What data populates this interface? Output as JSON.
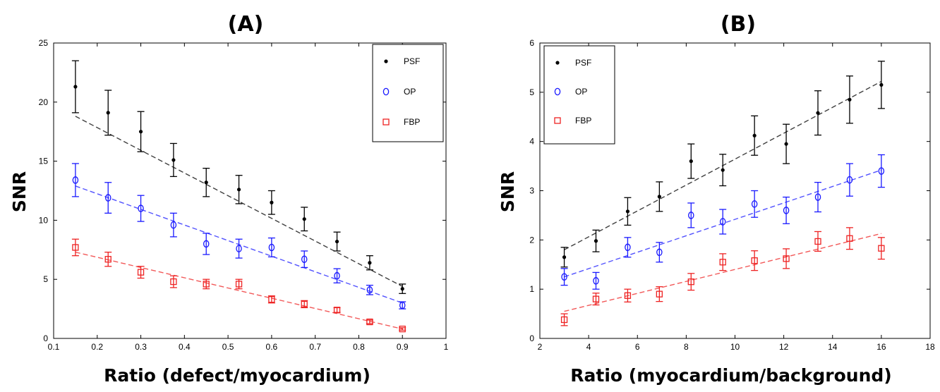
{
  "chart_data": [
    {
      "type": "scatter",
      "title": "(A)",
      "xlabel": "Ratio (defect/myocardium)",
      "ylabel": "SNR",
      "xlim": [
        0.1,
        1
      ],
      "ylim": [
        0,
        25
      ],
      "xticks": [
        "0.1",
        "0.2",
        "0.3",
        "0.4",
        "0.5",
        "0.6",
        "0.7",
        "0.8",
        "0.9",
        "1"
      ],
      "yticks": [
        "0",
        "5",
        "10",
        "15",
        "20",
        "25"
      ],
      "legend_position": "top-right",
      "x": [
        0.15,
        0.225,
        0.3,
        0.375,
        0.45,
        0.525,
        0.6,
        0.675,
        0.75,
        0.825,
        0.9
      ],
      "series": [
        {
          "name": "PSF",
          "color": "#000000",
          "marker": "dot",
          "values": [
            21.3,
            19.1,
            17.5,
            15.1,
            13.2,
            12.6,
            11.5,
            10.1,
            8.2,
            6.4,
            4.2
          ],
          "errors": [
            2.2,
            1.9,
            1.7,
            1.4,
            1.2,
            1.2,
            1.0,
            1.0,
            0.8,
            0.6,
            0.4
          ],
          "fit": [
            18.8,
            4.4
          ]
        },
        {
          "name": "OP",
          "color": "#1a1aff",
          "marker": "diamond",
          "values": [
            13.4,
            11.9,
            11.0,
            9.6,
            8.0,
            7.6,
            7.7,
            6.7,
            5.3,
            4.1,
            2.8
          ],
          "errors": [
            1.4,
            1.3,
            1.1,
            1.0,
            0.9,
            0.8,
            0.8,
            0.7,
            0.6,
            0.4,
            0.3
          ],
          "fit": [
            12.9,
            3.0
          ]
        },
        {
          "name": "FBP",
          "color": "#ee2222",
          "marker": "square",
          "values": [
            7.7,
            6.7,
            5.6,
            4.8,
            4.6,
            4.6,
            3.3,
            2.9,
            2.4,
            1.4,
            0.8
          ],
          "errors": [
            0.7,
            0.6,
            0.5,
            0.5,
            0.4,
            0.4,
            0.3,
            0.3,
            0.2,
            0.15,
            0.1
          ],
          "fit": [
            7.3,
            0.8
          ]
        }
      ]
    },
    {
      "type": "scatter",
      "title": "(B)",
      "xlabel": "Ratio (myocardium/background)",
      "ylabel": "SNR",
      "xlim": [
        2,
        18
      ],
      "ylim": [
        0,
        6
      ],
      "xticks": [
        "2",
        "4",
        "6",
        "8",
        "10",
        "12",
        "14",
        "16",
        "18"
      ],
      "yticks": [
        "0",
        "1",
        "2",
        "3",
        "4",
        "5",
        "6"
      ],
      "legend_position": "top-left",
      "x": [
        3,
        4.3,
        5.6,
        6.9,
        8.2,
        9.5,
        10.8,
        12.1,
        13.4,
        14.7,
        16
      ],
      "series": [
        {
          "name": "PSF",
          "color": "#000000",
          "marker": "dot",
          "values": [
            1.65,
            1.98,
            2.58,
            2.88,
            3.6,
            3.42,
            4.12,
            3.95,
            4.58,
            4.85,
            5.15
          ],
          "errors": [
            0.2,
            0.22,
            0.28,
            0.3,
            0.35,
            0.32,
            0.4,
            0.4,
            0.45,
            0.48,
            0.48
          ],
          "fit": [
            1.8,
            5.22
          ]
        },
        {
          "name": "OP",
          "color": "#1a1aff",
          "marker": "diamond",
          "values": [
            1.25,
            1.17,
            1.85,
            1.75,
            2.5,
            2.37,
            2.73,
            2.6,
            2.87,
            3.22,
            3.4
          ],
          "errors": [
            0.17,
            0.17,
            0.2,
            0.2,
            0.25,
            0.25,
            0.27,
            0.27,
            0.3,
            0.33,
            0.33
          ],
          "fit": [
            1.25,
            3.42
          ]
        },
        {
          "name": "FBP",
          "color": "#ee2222",
          "marker": "square",
          "values": [
            0.38,
            0.8,
            0.87,
            0.9,
            1.15,
            1.55,
            1.58,
            1.62,
            1.97,
            2.03,
            1.83
          ],
          "errors": [
            0.12,
            0.12,
            0.13,
            0.15,
            0.17,
            0.17,
            0.2,
            0.2,
            0.2,
            0.22,
            0.22
          ],
          "fit": [
            0.55,
            2.13
          ]
        }
      ]
    }
  ]
}
